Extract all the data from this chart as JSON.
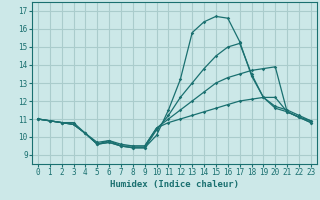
{
  "title": "",
  "xlabel": "Humidex (Indice chaleur)",
  "ylabel": "",
  "background_color": "#cce8e8",
  "grid_color": "#aacccc",
  "line_color": "#1a7070",
  "xlim": [
    -0.5,
    23.5
  ],
  "ylim": [
    8.5,
    17.5
  ],
  "xticks": [
    0,
    1,
    2,
    3,
    4,
    5,
    6,
    7,
    8,
    9,
    10,
    11,
    12,
    13,
    14,
    15,
    16,
    17,
    18,
    19,
    20,
    21,
    22,
    23
  ],
  "yticks": [
    9,
    10,
    11,
    12,
    13,
    14,
    15,
    16,
    17
  ],
  "line1_x": [
    0,
    1,
    2,
    3,
    4,
    5,
    6,
    7,
    8,
    9,
    10,
    11,
    12,
    13,
    14,
    15,
    16,
    17,
    18,
    19,
    20,
    21,
    22,
    23
  ],
  "line1_y": [
    11.0,
    10.9,
    10.8,
    10.8,
    10.2,
    9.6,
    9.8,
    9.5,
    9.4,
    9.4,
    10.1,
    11.5,
    13.2,
    15.8,
    16.4,
    16.7,
    16.6,
    15.3,
    13.4,
    12.2,
    11.6,
    11.4,
    11.1,
    10.9
  ],
  "line2_x": [
    0,
    1,
    2,
    3,
    4,
    5,
    6,
    7,
    8,
    9,
    10,
    11,
    12,
    13,
    14,
    15,
    16,
    17,
    18,
    19,
    20,
    21,
    22,
    23
  ],
  "line2_y": [
    11.0,
    10.9,
    10.8,
    10.7,
    10.2,
    9.6,
    9.7,
    9.5,
    9.4,
    9.4,
    10.4,
    11.2,
    12.2,
    13.0,
    13.8,
    14.5,
    15.0,
    15.2,
    13.5,
    12.2,
    11.7,
    11.5,
    11.2,
    10.9
  ],
  "line3_x": [
    0,
    1,
    2,
    3,
    4,
    5,
    6,
    7,
    8,
    9,
    10,
    11,
    12,
    13,
    14,
    15,
    16,
    17,
    18,
    19,
    20,
    21,
    22,
    23
  ],
  "line3_y": [
    11.0,
    10.9,
    10.8,
    10.7,
    10.2,
    9.6,
    9.7,
    9.5,
    9.5,
    9.5,
    10.5,
    11.0,
    11.5,
    12.0,
    12.5,
    13.0,
    13.3,
    13.5,
    13.7,
    13.8,
    13.9,
    11.4,
    11.1,
    10.8
  ],
  "line4_x": [
    0,
    1,
    2,
    3,
    4,
    5,
    6,
    7,
    8,
    9,
    10,
    11,
    12,
    13,
    14,
    15,
    16,
    17,
    18,
    19,
    20,
    21,
    22,
    23
  ],
  "line4_y": [
    11.0,
    10.9,
    10.8,
    10.7,
    10.2,
    9.7,
    9.8,
    9.6,
    9.5,
    9.5,
    10.5,
    10.8,
    11.0,
    11.2,
    11.4,
    11.6,
    11.8,
    12.0,
    12.1,
    12.2,
    12.2,
    11.4,
    11.1,
    10.8
  ]
}
